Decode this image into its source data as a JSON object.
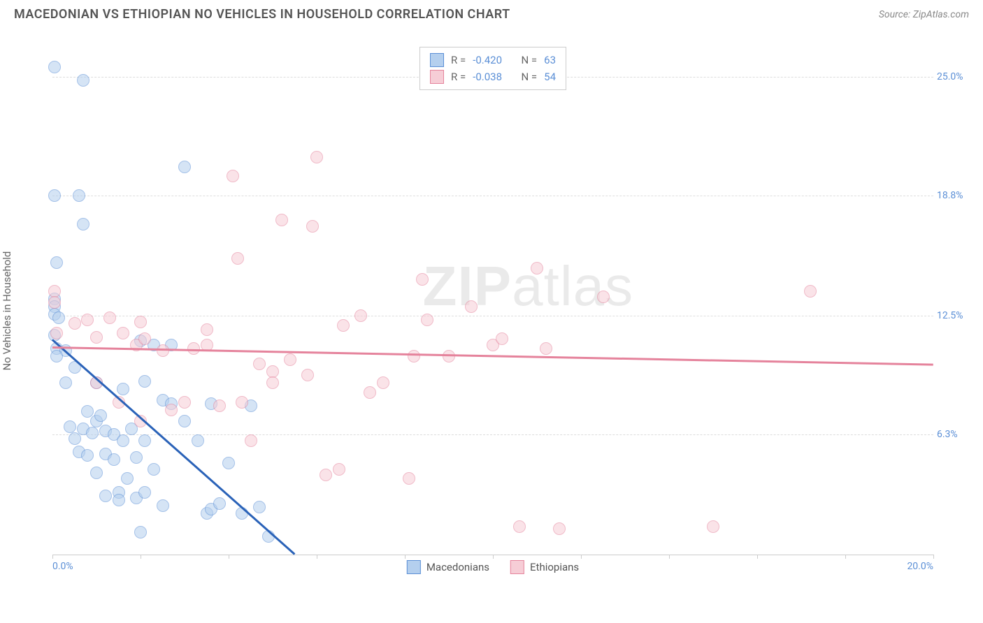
{
  "header": {
    "title": "MACEDONIAN VS ETHIOPIAN NO VEHICLES IN HOUSEHOLD CORRELATION CHART",
    "source_prefix": "Source: ",
    "source_link": "ZipAtlas.com"
  },
  "chart": {
    "type": "scatter",
    "y_axis_label": "No Vehicles in Household",
    "background_color": "#ffffff",
    "grid_color": "#dddddd",
    "axis_color": "#cccccc",
    "tick_label_color": "#5b8fd6",
    "xlim": [
      0,
      20
    ],
    "ylim": [
      0,
      27
    ],
    "x_ticks": [
      0,
      2,
      4,
      6,
      8,
      10,
      12,
      14,
      16,
      18,
      20
    ],
    "x_tick_labels": {
      "0": "0.0%",
      "20": "20.0%"
    },
    "y_ticks": [
      6.3,
      12.5,
      18.8,
      25.0
    ],
    "y_tick_labels": [
      "6.3%",
      "12.5%",
      "18.8%",
      "25.0%"
    ],
    "point_radius": 9,
    "point_stroke_width": 1.5,
    "series": [
      {
        "name": "Macedonians",
        "fill_color": "#b4cfee",
        "stroke_color": "#5b8fd6",
        "fill_opacity": 0.55,
        "R": "-0.420",
        "N": "63",
        "trend": {
          "x1": 0,
          "y1": 11.3,
          "x2": 5.5,
          "y2": 0.1,
          "color": "#2a62b8",
          "width": 2.5
        },
        "points": [
          [
            0.05,
            25.5
          ],
          [
            0.7,
            24.8
          ],
          [
            0.05,
            18.8
          ],
          [
            0.6,
            18.8
          ],
          [
            0.1,
            15.3
          ],
          [
            0.05,
            13.4
          ],
          [
            0.05,
            13.0
          ],
          [
            0.05,
            12.6
          ],
          [
            0.15,
            12.4
          ],
          [
            0.05,
            11.5
          ],
          [
            0.1,
            10.8
          ],
          [
            0.3,
            10.7
          ],
          [
            0.1,
            10.4
          ],
          [
            2.0,
            11.2
          ],
          [
            2.3,
            11.0
          ],
          [
            0.7,
            17.3
          ],
          [
            0.3,
            9.0
          ],
          [
            0.5,
            9.8
          ],
          [
            1.0,
            9.0
          ],
          [
            1.6,
            8.7
          ],
          [
            2.1,
            9.1
          ],
          [
            2.7,
            11.0
          ],
          [
            3.0,
            20.3
          ],
          [
            0.4,
            6.7
          ],
          [
            0.7,
            6.6
          ],
          [
            0.5,
            6.1
          ],
          [
            0.9,
            6.4
          ],
          [
            1.0,
            7.0
          ],
          [
            1.2,
            6.5
          ],
          [
            1.4,
            6.3
          ],
          [
            1.6,
            6.0
          ],
          [
            1.8,
            6.6
          ],
          [
            2.1,
            6.0
          ],
          [
            0.6,
            5.4
          ],
          [
            0.8,
            5.2
          ],
          [
            1.2,
            5.3
          ],
          [
            1.4,
            5.0
          ],
          [
            1.9,
            5.1
          ],
          [
            1.0,
            4.3
          ],
          [
            1.2,
            3.1
          ],
          [
            1.5,
            3.3
          ],
          [
            1.5,
            2.9
          ],
          [
            1.9,
            3.0
          ],
          [
            2.1,
            3.3
          ],
          [
            2.5,
            2.6
          ],
          [
            2.5,
            8.1
          ],
          [
            2.7,
            7.9
          ],
          [
            3.0,
            7.0
          ],
          [
            3.3,
            6.0
          ],
          [
            3.6,
            7.9
          ],
          [
            3.5,
            2.2
          ],
          [
            3.6,
            2.4
          ],
          [
            3.8,
            2.7
          ],
          [
            4.0,
            4.8
          ],
          [
            4.3,
            2.2
          ],
          [
            4.5,
            7.8
          ],
          [
            4.7,
            2.5
          ],
          [
            4.9,
            1.0
          ],
          [
            1.7,
            4.0
          ],
          [
            2.0,
            1.2
          ],
          [
            2.3,
            4.5
          ],
          [
            0.8,
            7.5
          ],
          [
            1.1,
            7.3
          ]
        ]
      },
      {
        "name": "Ethiopians",
        "fill_color": "#f6cdd6",
        "stroke_color": "#e5839c",
        "fill_opacity": 0.55,
        "R": "-0.038",
        "N": "54",
        "trend": {
          "x1": 0,
          "y1": 10.9,
          "x2": 20,
          "y2": 10.0,
          "color": "#e5839c",
          "width": 2.5
        },
        "points": [
          [
            0.05,
            13.8
          ],
          [
            0.05,
            13.2
          ],
          [
            0.1,
            11.6
          ],
          [
            0.5,
            12.1
          ],
          [
            0.8,
            12.3
          ],
          [
            1.0,
            11.4
          ],
          [
            1.3,
            12.4
          ],
          [
            1.6,
            11.6
          ],
          [
            1.9,
            11.0
          ],
          [
            2.1,
            11.3
          ],
          [
            2.5,
            10.7
          ],
          [
            2.7,
            7.6
          ],
          [
            3.0,
            8.0
          ],
          [
            3.2,
            10.8
          ],
          [
            3.5,
            11.0
          ],
          [
            3.8,
            7.8
          ],
          [
            4.1,
            19.8
          ],
          [
            4.3,
            8.0
          ],
          [
            4.5,
            6.0
          ],
          [
            4.7,
            10.0
          ],
          [
            5.0,
            9.6
          ],
          [
            5.2,
            17.5
          ],
          [
            5.4,
            10.2
          ],
          [
            5.8,
            9.4
          ],
          [
            5.9,
            17.2
          ],
          [
            6.0,
            20.8
          ],
          [
            6.2,
            4.2
          ],
          [
            6.5,
            4.5
          ],
          [
            6.6,
            12.0
          ],
          [
            7.0,
            12.5
          ],
          [
            7.2,
            8.5
          ],
          [
            7.5,
            9.0
          ],
          [
            8.1,
            4.0
          ],
          [
            8.2,
            10.4
          ],
          [
            8.4,
            14.4
          ],
          [
            8.5,
            12.3
          ],
          [
            9.0,
            10.4
          ],
          [
            9.5,
            13.0
          ],
          [
            10.0,
            11.0
          ],
          [
            10.2,
            11.3
          ],
          [
            10.6,
            1.5
          ],
          [
            11.0,
            15.0
          ],
          [
            11.2,
            10.8
          ],
          [
            11.5,
            1.4
          ],
          [
            12.5,
            13.5
          ],
          [
            15.0,
            1.5
          ],
          [
            17.2,
            13.8
          ],
          [
            1.0,
            9.0
          ],
          [
            1.5,
            8.0
          ],
          [
            2.0,
            12.2
          ],
          [
            2.0,
            7.0
          ],
          [
            3.5,
            11.8
          ],
          [
            4.2,
            15.5
          ],
          [
            5.0,
            9.0
          ]
        ]
      }
    ],
    "stats_labels": {
      "R": "R =",
      "N": "N ="
    },
    "legend": {
      "series1": "Macedonians",
      "series2": "Ethiopians"
    },
    "watermark": {
      "part1": "ZIP",
      "part2": "atlas"
    }
  }
}
